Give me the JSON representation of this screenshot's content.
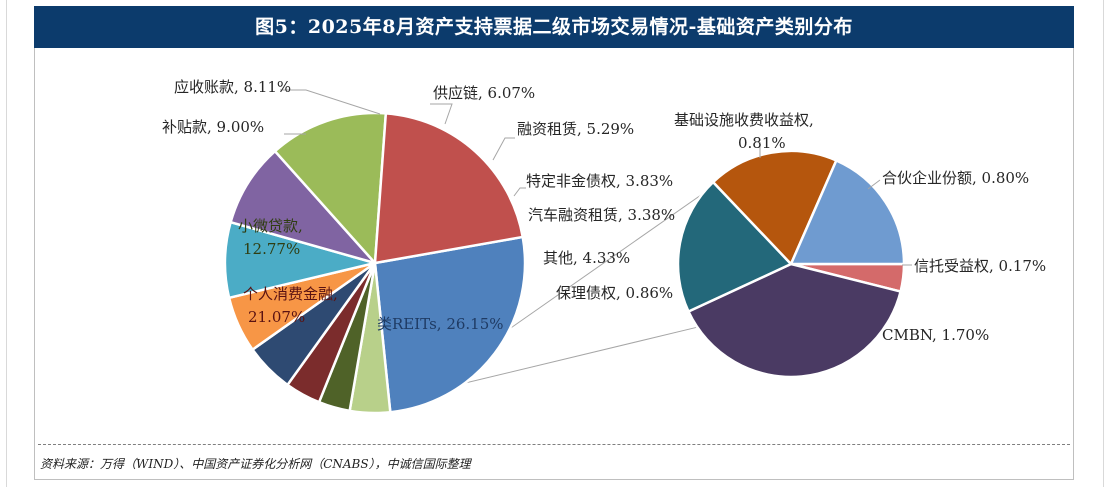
{
  "header": {
    "title": "图5：2025年8月资产支持票据二级市场交易情况-基础资产类别分布"
  },
  "source": "资料来源：万得（WIND）、中国资产证券化分析网（CNABS），中诚信国际整理",
  "chart_data": [
    {
      "type": "pie",
      "name": "main",
      "unit": "%",
      "slices": [
        {
          "label": "类REITs",
          "value": 26.15,
          "color": "#4f81bd",
          "text": "类REITs, 26.15%"
        },
        {
          "label": "其他",
          "value": 4.33,
          "color": "#b8d08a",
          "text": "其他, 4.33%"
        },
        {
          "label": "汽车融资租赁",
          "value": 3.38,
          "color": "#4f6228",
          "text": "汽车融资租赁, 3.38%"
        },
        {
          "label": "特定非金债权",
          "value": 3.83,
          "color": "#7b2c2c",
          "text": "特定非金债权, 3.83%"
        },
        {
          "label": "融资租赁",
          "value": 5.29,
          "color": "#2e4a72",
          "text": "融资租赁, 5.29%"
        },
        {
          "label": "供应链",
          "value": 6.07,
          "color": "#f79646",
          "text": "供应链, 6.07%"
        },
        {
          "label": "应收账款",
          "value": 8.11,
          "color": "#4bacc6",
          "text": "应收账款, 8.11%"
        },
        {
          "label": "补贴款",
          "value": 9.0,
          "color": "#8064a2",
          "text": "补贴款, 9.00%"
        },
        {
          "label": "小微贷款",
          "value": 12.77,
          "color": "#9bbb59",
          "text": "小微贷款,",
          "text2": "12.77%"
        },
        {
          "label": "个人消费金融",
          "value": 21.07,
          "color": "#c0504d",
          "text": "个人消费金融,",
          "text2": "21.07%"
        }
      ]
    },
    {
      "type": "pie",
      "name": "breakdown-of-其他",
      "unit": "%",
      "slices": [
        {
          "label": "信托受益权",
          "value": 0.17,
          "color": "#d46a6a",
          "text": "信托受益权, 0.17%"
        },
        {
          "label": "CMBN",
          "value": 1.7,
          "color": "#4a3a63",
          "text": "CMBN, 1.70%"
        },
        {
          "label": "保理债权",
          "value": 0.86,
          "color": "#23687a",
          "text": "保理债权, 0.86%"
        },
        {
          "label": "基础设施收费收益权",
          "value": 0.81,
          "color": "#b5560d",
          "text": "基础设施收费收益权,",
          "text2": "0.81%"
        },
        {
          "label": "合伙企业份额",
          "value": 0.8,
          "color": "#6f9bd0",
          "text": "合伙企业份额, 0.80%"
        }
      ]
    }
  ]
}
